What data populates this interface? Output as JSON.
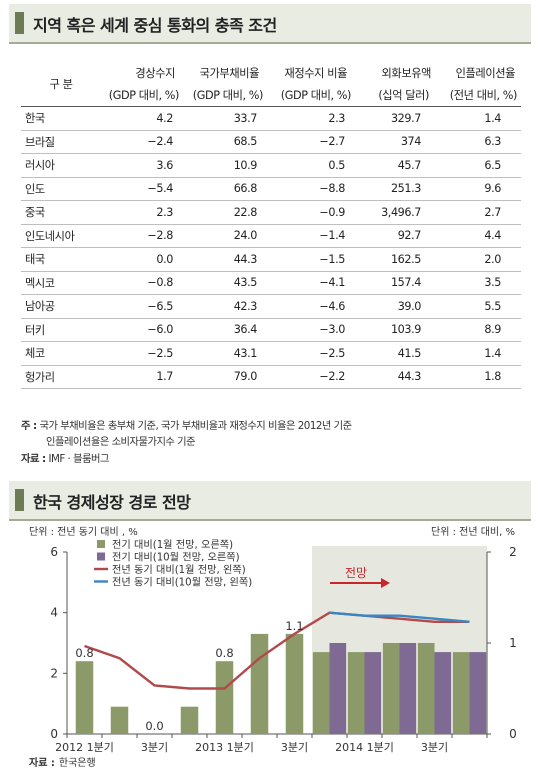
{
  "table_panel": {
    "title": "지역 혹은 세계 중심 통화의 충족 조건",
    "row_header_label": "구 분",
    "columns": [
      {
        "name": "경상수지",
        "unit": "(GDP 대비, %)"
      },
      {
        "name": "국가부채비율",
        "unit": "(GDP 대비, %)"
      },
      {
        "name": "재정수지 비율",
        "unit": "(GDP 대비, %)"
      },
      {
        "name": "외화보유액",
        "unit": "(십억 달러)"
      },
      {
        "name": "인플레이션율",
        "unit": "(전년 대비, %)"
      }
    ],
    "rows": [
      [
        "한국",
        "4.2",
        "33.7",
        "2.3",
        "329.7",
        "1.4"
      ],
      [
        "브라질",
        "−2.4",
        "68.5",
        "−2.7",
        "374",
        "6.3"
      ],
      [
        "러시아",
        "3.6",
        "10.9",
        "0.5",
        "45.7",
        "6.5"
      ],
      [
        "인도",
        "−5.4",
        "66.8",
        "−8.8",
        "251.3",
        "9.6"
      ],
      [
        "중국",
        "2.3",
        "22.8",
        "−0.9",
        "3,496.7",
        "2.7"
      ],
      [
        "인도네시아",
        "−2.8",
        "24.0",
        "−1.4",
        "92.7",
        "4.4"
      ],
      [
        "태국",
        "0.0",
        "44.3",
        "−1.5",
        "162.5",
        "2.0"
      ],
      [
        "멕시코",
        "−0.8",
        "43.5",
        "−4.1",
        "157.4",
        "3.5"
      ],
      [
        "남아공",
        "−6.5",
        "42.3",
        "−4.6",
        "39.0",
        "5.5"
      ],
      [
        "터키",
        "−6.0",
        "36.4",
        "−3.0",
        "103.9",
        "8.9"
      ],
      [
        "체코",
        "−2.5",
        "43.1",
        "−2.5",
        "41.5",
        "1.4"
      ],
      [
        "헝가리",
        "1.7",
        "79.0",
        "−2.2",
        "44.3",
        "1.8"
      ]
    ],
    "note_label": "주 :",
    "note_line1": "국가 부채비율은 총부채 기준, 국가 부채비율과 재정수지 비율은 2012년 기준",
    "note_line2": "인플레이션율은 소비자물가지수 기준",
    "source_label": "자료 :",
    "source_text": "IMF · 블룸버그"
  },
  "chart_panel": {
    "title": "한국 경제성장 경로 전망",
    "left_unit": "단위 : 전년 동기 대비 , %",
    "right_unit": "단위 : 전년 대비, %",
    "forecast_label": "전망",
    "source_label": "자료 :",
    "source_text": "한국은행",
    "colors": {
      "bar_jan": "#8b9a68",
      "bar_oct": "#7e6a92",
      "line_jan": "#b14a4a",
      "line_oct": "#3a86c4",
      "shade": "#e6e7df",
      "arrow": "#c8262b"
    }
  },
  "chart_data": {
    "type": "bar",
    "x_slots": 12,
    "x_tick_labels": [
      {
        "slot": 0,
        "label": "2012 1분기"
      },
      {
        "slot": 2,
        "label": "3분기"
      },
      {
        "slot": 4,
        "label": "2013 1분기"
      },
      {
        "slot": 6,
        "label": "3분기"
      },
      {
        "slot": 8,
        "label": "2014 1분기"
      },
      {
        "slot": 10,
        "label": "3분기"
      }
    ],
    "forecast_from_slot": 7,
    "left_axis": {
      "ylim": [
        0,
        6
      ],
      "ticks": [
        0,
        2,
        4,
        6
      ]
    },
    "right_axis": {
      "ylim": [
        0,
        2
      ],
      "ticks": [
        0,
        1,
        2
      ]
    },
    "series": [
      {
        "name": "전기 대비(1월 전망, 오른쪽)",
        "type": "bar",
        "axis": "right",
        "values": [
          0.8,
          0.3,
          0.0,
          0.3,
          0.8,
          1.1,
          1.1,
          0.9,
          0.9,
          1.0,
          1.0,
          0.9
        ]
      },
      {
        "name": "전기 대비(10월 전망, 오른쪽)",
        "type": "bar",
        "axis": "right",
        "values": [
          null,
          null,
          null,
          null,
          null,
          null,
          null,
          1.0,
          0.9,
          1.0,
          0.9,
          0.9
        ]
      },
      {
        "name": "전년 동기 대비(1월 전망, 왼쪽)",
        "type": "line",
        "axis": "left",
        "values": [
          2.9,
          2.5,
          1.6,
          1.5,
          1.5,
          2.5,
          3.3,
          4.0,
          3.9,
          3.8,
          3.7,
          3.7
        ]
      },
      {
        "name": "전년 동기 대비(10월 전망, 왼쪽)",
        "type": "line",
        "axis": "left",
        "values": [
          null,
          null,
          null,
          null,
          null,
          null,
          null,
          4.0,
          3.9,
          3.9,
          3.8,
          3.7
        ]
      }
    ],
    "data_labels": [
      {
        "slot": 0,
        "text": "0.8"
      },
      {
        "slot": 2,
        "text": "0.0"
      },
      {
        "slot": 4,
        "text": "0.8"
      },
      {
        "slot": 6,
        "text": "1.1"
      }
    ]
  }
}
